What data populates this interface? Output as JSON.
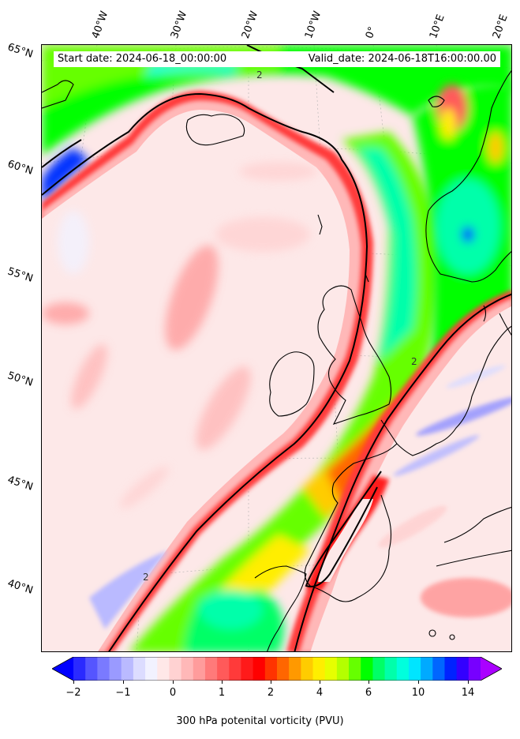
{
  "info": {
    "start_date": "Start date: 2024-06-18_00:00:00",
    "valid_date": "Valid_date: 2024-06-18T16:00:00.00"
  },
  "lat_labels": [
    "65°N",
    "60°N",
    "55°N",
    "50°N",
    "45°N",
    "40°N"
  ],
  "lon_labels": [
    "40°W",
    "30°W",
    "20°W",
    "10°W",
    "0°",
    "10°E",
    "20°E"
  ],
  "contour_labels": [
    "2",
    "2",
    "2"
  ],
  "colorbar": {
    "label": "300 hPa potenital vorticity (PVU)",
    "ticks": [
      "−2",
      "−1",
      "0",
      "1",
      "2",
      "4",
      "6",
      "10",
      "14"
    ],
    "colors": [
      "#0000ff",
      "#2a2aff",
      "#5555ff",
      "#7a7aff",
      "#9a9aff",
      "#babaff",
      "#dcdcff",
      "#f2f2ff",
      "#ffe8e8",
      "#ffd2d2",
      "#ffb8b8",
      "#ff9c9c",
      "#ff7a7a",
      "#ff5a5a",
      "#ff3a3a",
      "#ff1a1a",
      "#ff0000",
      "#ff3300",
      "#ff6600",
      "#ff9900",
      "#ffcc00",
      "#ffee00",
      "#e6ff00",
      "#b4ff00",
      "#66ff00",
      "#00ff00",
      "#00ff66",
      "#00ffaa",
      "#00ffdd",
      "#00e5ff",
      "#00aaff",
      "#0066ff",
      "#0022ff",
      "#3300ff",
      "#7700ff",
      "#aa00ff"
    ]
  },
  "colors": {
    "background_pv": "#fde8e8",
    "ridge_pv": "#ffffff",
    "land_outline": "#000000",
    "pv2_contour": "#000000"
  }
}
